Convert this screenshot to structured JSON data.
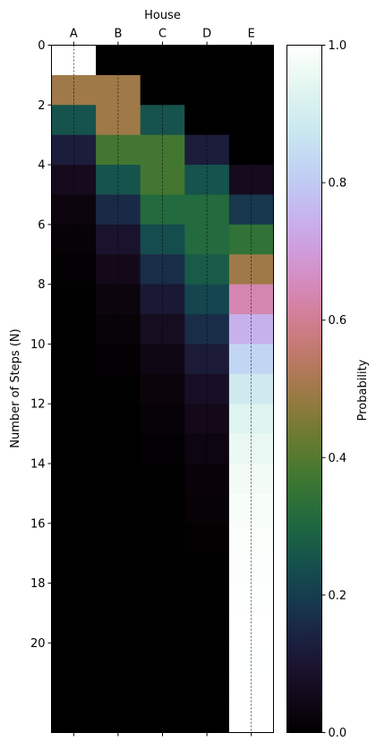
{
  "chart_data": {
    "type": "heatmap",
    "xlabel": "House",
    "ylabel": "Number of Steps (N)",
    "x_categories": [
      "A",
      "B",
      "C",
      "D",
      "E"
    ],
    "y_range": [
      0,
      23
    ],
    "y_ticks": [
      0,
      2,
      4,
      6,
      8,
      10,
      12,
      14,
      16,
      18,
      20
    ],
    "colorbar": {
      "label": "Probability",
      "range": [
        0,
        1
      ],
      "ticks": [
        0.0,
        0.2,
        0.4,
        0.6,
        0.8,
        1.0
      ],
      "tick_labels": [
        "0.0",
        "0.2",
        "0.4",
        "0.6",
        "0.8",
        "1.0"
      ],
      "colormap": "cubehelix"
    },
    "rows": [
      {
        "step": 0,
        "values": [
          1.0,
          0.0,
          0.0,
          0.0,
          0.0
        ]
      },
      {
        "step": 1,
        "values": [
          0.5,
          0.5,
          0.0,
          0.0,
          0.0
        ]
      },
      {
        "step": 2,
        "values": [
          0.25,
          0.5,
          0.25,
          0.0,
          0.0
        ]
      },
      {
        "step": 3,
        "values": [
          0.125,
          0.375,
          0.375,
          0.125,
          0.0
        ]
      },
      {
        "step": 4,
        "values": [
          0.0625,
          0.25,
          0.375,
          0.25,
          0.0625
        ]
      },
      {
        "step": 5,
        "values": [
          0.0313,
          0.1563,
          0.3125,
          0.3125,
          0.1875
        ]
      },
      {
        "step": 6,
        "values": [
          0.0156,
          0.0938,
          0.2344,
          0.3125,
          0.3438
        ]
      },
      {
        "step": 7,
        "values": [
          0.0078,
          0.0547,
          0.1641,
          0.2734,
          0.5
        ]
      },
      {
        "step": 8,
        "values": [
          0.0039,
          0.0313,
          0.1094,
          0.2188,
          0.6367
        ]
      },
      {
        "step": 9,
        "values": [
          0.002,
          0.0176,
          0.0703,
          0.1641,
          0.7461
        ]
      },
      {
        "step": 10,
        "values": [
          0.001,
          0.0098,
          0.0439,
          0.1172,
          0.8281
        ]
      },
      {
        "step": 11,
        "values": [
          0.0005,
          0.0054,
          0.0269,
          0.0806,
          0.8867
        ]
      },
      {
        "step": 12,
        "values": [
          0.0002,
          0.0029,
          0.0161,
          0.0537,
          0.927
        ]
      },
      {
        "step": 13,
        "values": [
          0.0001,
          0.0016,
          0.0095,
          0.0349,
          0.9539
        ]
      },
      {
        "step": 14,
        "values": [
          0.0001,
          0.0009,
          0.0056,
          0.0222,
          0.9713
        ]
      },
      {
        "step": 15,
        "values": [
          0.0,
          0.0005,
          0.0032,
          0.0139,
          0.9824
        ]
      },
      {
        "step": 16,
        "values": [
          0.0,
          0.0003,
          0.0018,
          0.0085,
          0.9894
        ]
      },
      {
        "step": 17,
        "values": [
          0.0,
          0.0001,
          0.001,
          0.0052,
          0.9936
        ]
      },
      {
        "step": 18,
        "values": [
          0.0,
          0.0001,
          0.0006,
          0.0031,
          0.9962
        ]
      },
      {
        "step": 19,
        "values": [
          0.0,
          0.0,
          0.0003,
          0.0018,
          0.9978
        ]
      },
      {
        "step": 20,
        "values": [
          0.0,
          0.0,
          0.0002,
          0.0011,
          0.9987
        ]
      },
      {
        "step": 21,
        "values": [
          0.0,
          0.0,
          0.0001,
          0.0006,
          0.9993
        ]
      },
      {
        "step": 22,
        "values": [
          0.0,
          0.0,
          0.0,
          0.0004,
          0.9996
        ]
      }
    ],
    "dashed_column_lines": true,
    "grid": false
  }
}
